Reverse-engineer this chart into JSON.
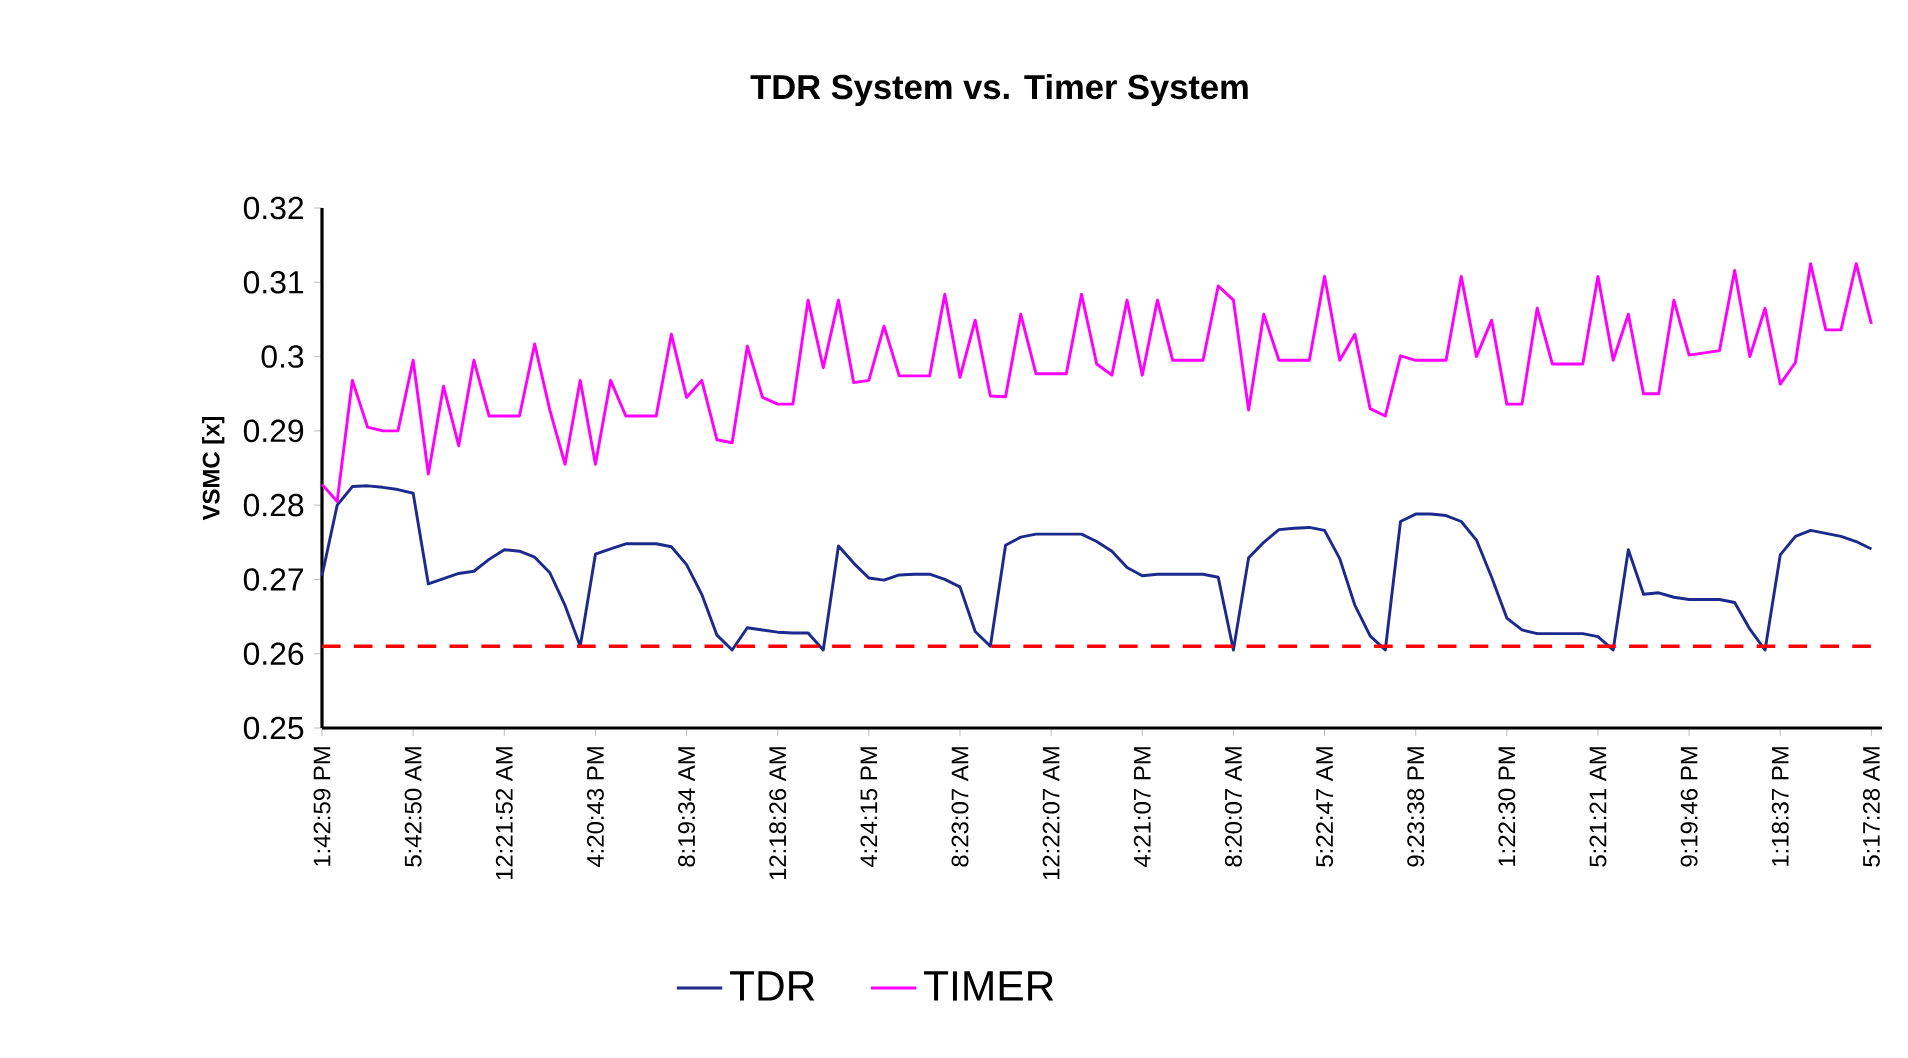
{
  "chart_data": {
    "type": "line",
    "title": "TDR System vs. Timer System",
    "ylabel": "VSMC [x]",
    "categories": [
      "1:42:59 PM",
      null,
      null,
      null,
      null,
      null,
      "5:42:50 AM",
      null,
      null,
      null,
      null,
      null,
      "12:21:52 AM",
      null,
      null,
      null,
      null,
      null,
      "4:20:43 PM",
      null,
      null,
      null,
      null,
      null,
      "8:19:34 AM",
      null,
      null,
      null,
      null,
      null,
      "12:18:26 AM",
      null,
      null,
      null,
      null,
      null,
      "4:24:15 PM",
      null,
      null,
      null,
      null,
      null,
      "8:23:07 AM",
      null,
      null,
      null,
      null,
      null,
      "12:22:07 AM",
      null,
      null,
      null,
      null,
      null,
      "4:21:07 PM",
      null,
      null,
      null,
      null,
      null,
      "8:20:07 AM",
      null,
      null,
      null,
      null,
      null,
      "5:22:47 AM",
      null,
      null,
      null,
      null,
      null,
      "9:23:38 PM",
      null,
      null,
      null,
      null,
      null,
      "1:22:30 PM",
      null,
      null,
      null,
      null,
      null,
      "5:21:21 AM",
      null,
      null,
      null,
      null,
      null,
      "9:19:46 PM",
      null,
      null,
      null,
      null,
      null,
      "1:18:37 PM",
      null,
      null,
      null,
      null,
      null,
      "5:17:28 AM"
    ],
    "ylim": [
      0.25,
      0.32
    ],
    "yticks": [
      0.25,
      0.26,
      0.27,
      0.28,
      0.29,
      0.3,
      0.31,
      0.32
    ],
    "legend": "bottom",
    "grid": false,
    "marker": "none",
    "series": [
      {
        "name": "TDR",
        "color": "#1c2a8c",
        "line_style": "solid",
        "values": [
          0.2705,
          0.28,
          0.2825,
          0.2826,
          0.2824,
          0.2821,
          0.2816,
          0.2694,
          0.2701,
          0.2708,
          0.2711,
          0.2727,
          0.274,
          0.2738,
          0.273,
          0.2709,
          0.2665,
          0.261,
          0.2734,
          0.2741,
          0.2748,
          0.2748,
          0.2748,
          0.2744,
          0.272,
          0.268,
          0.2625,
          0.2605,
          0.2635,
          0.2632,
          0.2629,
          0.2628,
          0.2628,
          0.2605,
          0.2745,
          0.2722,
          0.2702,
          0.2699,
          0.2706,
          0.2707,
          0.2707,
          0.27,
          0.269,
          0.263,
          0.261,
          0.2746,
          0.2757,
          0.2761,
          0.2761,
          0.2761,
          0.2761,
          0.2751,
          0.2738,
          0.2716,
          0.2705,
          0.2707,
          0.2707,
          0.2707,
          0.2707,
          0.2703,
          0.2605,
          0.2729,
          0.275,
          0.2767,
          0.2769,
          0.277,
          0.2766,
          0.2728,
          0.2665,
          0.2624,
          0.2605,
          0.2778,
          0.2788,
          0.2788,
          0.2786,
          0.2778,
          0.2753,
          0.2703,
          0.2648,
          0.2632,
          0.2627,
          0.2627,
          0.2627,
          0.2627,
          0.2623,
          0.2605,
          0.274,
          0.268,
          0.2682,
          0.2676,
          0.2673,
          0.2673,
          0.2673,
          0.2669,
          0.2633,
          0.2605,
          0.2733,
          0.2758,
          0.2766,
          0.2762,
          0.2758,
          0.2751,
          0.2741
        ]
      },
      {
        "name": "TIMER",
        "color": "#ff00ff",
        "line_style": "solid",
        "values": [
          0.2828,
          0.2805,
          0.2968,
          0.2905,
          0.29,
          0.29,
          0.2995,
          0.2842,
          0.296,
          0.288,
          0.2995,
          0.292,
          0.292,
          0.292,
          0.3017,
          0.2928,
          0.2855,
          0.2968,
          0.2855,
          0.2968,
          0.292,
          0.292,
          0.292,
          0.303,
          0.2945,
          0.2968,
          0.2888,
          0.2884,
          0.3014,
          0.2945,
          0.2936,
          0.2936,
          0.3076,
          0.2985,
          0.3076,
          0.2965,
          0.2968,
          0.3041,
          0.2974,
          0.2974,
          0.2974,
          0.3084,
          0.2972,
          0.3049,
          0.2947,
          0.2946,
          0.3057,
          0.2977,
          0.2977,
          0.2977,
          0.3084,
          0.299,
          0.2975,
          0.3076,
          0.2975,
          0.3076,
          0.2995,
          0.2995,
          0.2995,
          0.3095,
          0.3076,
          0.2928,
          0.3057,
          0.2995,
          0.2995,
          0.2995,
          0.3108,
          0.2995,
          0.303,
          0.293,
          0.292,
          0.3001,
          0.2995,
          0.2995,
          0.2995,
          0.3108,
          0.3,
          0.3049,
          0.2936,
          0.2936,
          0.3065,
          0.299,
          0.299,
          0.299,
          0.3108,
          0.2995,
          0.3057,
          0.295,
          0.295,
          0.3076,
          0.3002,
          0.3005,
          0.3008,
          0.3116,
          0.3,
          0.3065,
          0.2963,
          0.2992,
          0.3125,
          0.3036,
          0.3036,
          0.3125,
          0.3044
        ]
      }
    ],
    "ref_lines": [
      {
        "axis": "y",
        "value": 0.261,
        "color": "#ff0000",
        "line_style": "dashed"
      }
    ]
  }
}
